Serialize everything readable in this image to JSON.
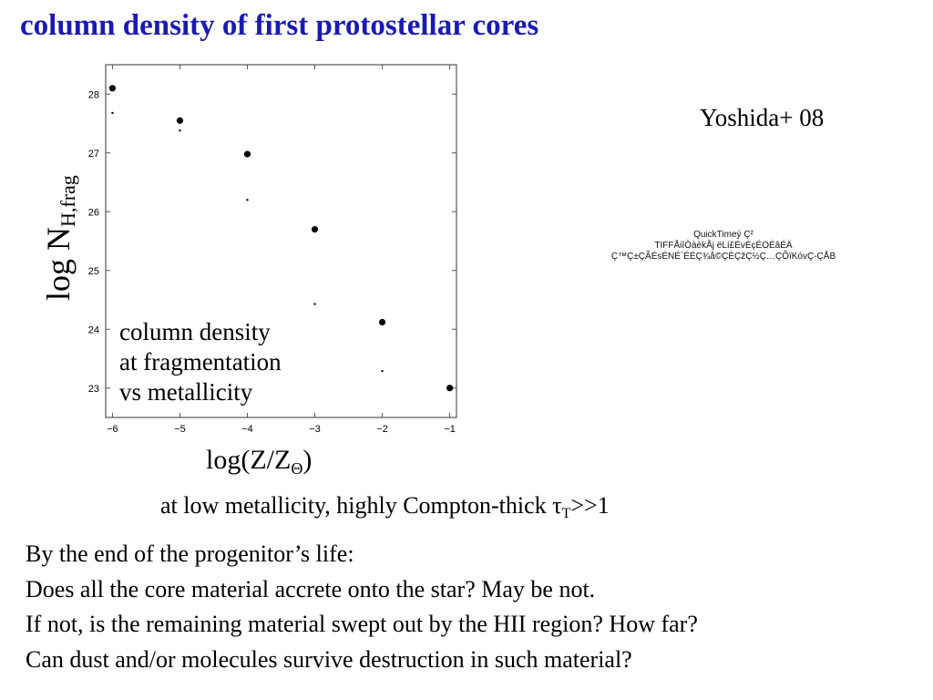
{
  "title": "column density of first protostellar cores",
  "credit": "Yoshida+ 08",
  "quicktime_lines": [
    "QuickTimeý Ç²",
    "TIFFÅiîÒàèkÅj ëLí£ÉvÉçÉOÉâÉÄ",
    "Ç™Ç±ÇÃÉsÉNÉ`ÉÉÇ¾å©ÇÈÇžÇ½Ç…ÇÕïKóvÇ-ÇÅB"
  ],
  "compton": {
    "text": "at low metallicity, highly Compton-thick ",
    "tau": "τ",
    "tau_sub": "T",
    "tail": ">>1"
  },
  "body_lines": [
    "By the end of the progenitor’s life:",
    "Does all the core material accrete onto the star? May be not.",
    "If not, is the remaining material swept out by the HII region? How far?",
    "Can dust and/or molecules survive destruction in such material?"
  ],
  "chart_data": {
    "type": "scatter",
    "x_ticks": [
      -6,
      -5,
      -4,
      -3,
      -2,
      -1
    ],
    "y_ticks": [
      23,
      24,
      25,
      26,
      27,
      28
    ],
    "xlim": [
      -6.1,
      -0.9
    ],
    "ylim": [
      22.5,
      28.5
    ],
    "grid": false,
    "ylabel": {
      "main": "log N",
      "sub": "H,frag"
    },
    "xlabel": {
      "main": "log(Z/Z",
      "sub": "Θ",
      "tail": ")"
    },
    "annotation": [
      "column density",
      "at fragmentation",
      "vs metallicity"
    ],
    "series": [
      {
        "marker": "large-dot",
        "x": [
          -6,
          -5,
          -4,
          -3,
          -2,
          -1
        ],
        "y": [
          28.1,
          27.55,
          26.98,
          25.7,
          24.12,
          23.0
        ]
      },
      {
        "marker": "small-dot",
        "x": [
          -6,
          -5,
          -4,
          -3,
          -2
        ],
        "y": [
          27.68,
          27.38,
          26.2,
          24.43,
          23.29
        ]
      }
    ]
  }
}
